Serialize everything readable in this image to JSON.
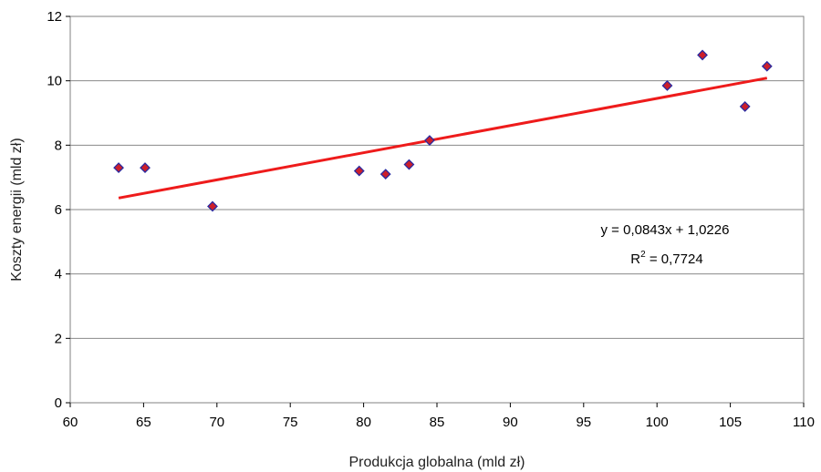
{
  "chart_data": {
    "type": "scatter",
    "title": "",
    "xlabel": "Produkcja globalna (mld zł)",
    "ylabel": "Koszty energii (mld zł)",
    "xlim": [
      60,
      110
    ],
    "ylim": [
      0,
      12
    ],
    "xticks": [
      60,
      65,
      70,
      75,
      80,
      85,
      90,
      95,
      100,
      105,
      110
    ],
    "yticks": [
      0,
      2,
      4,
      6,
      8,
      10,
      12
    ],
    "grid": "horizontal",
    "marker_color": "#cc1f2a",
    "marker_edge_color": "#2a2aa0",
    "trendline_color": "#ee1b1b",
    "series": [
      {
        "points": [
          {
            "x": 63.3,
            "y": 7.3
          },
          {
            "x": 65.1,
            "y": 7.3
          },
          {
            "x": 69.7,
            "y": 6.1
          },
          {
            "x": 79.7,
            "y": 7.2
          },
          {
            "x": 81.5,
            "y": 7.1
          },
          {
            "x": 83.1,
            "y": 7.4
          },
          {
            "x": 84.5,
            "y": 8.15
          },
          {
            "x": 100.7,
            "y": 9.85
          },
          {
            "x": 103.1,
            "y": 10.8
          },
          {
            "x": 106.0,
            "y": 9.2
          },
          {
            "x": 107.5,
            "y": 10.45
          }
        ]
      }
    ],
    "trendline": {
      "slope": 0.0843,
      "intercept": 1.0226,
      "x_range": [
        63.3,
        107.5
      ]
    },
    "annotations": {
      "equation": "y = 0,0843x + 1,0226",
      "r2_prefix": "R",
      "r2_exponent": "2",
      "r2_suffix": " = 0,7724"
    }
  }
}
